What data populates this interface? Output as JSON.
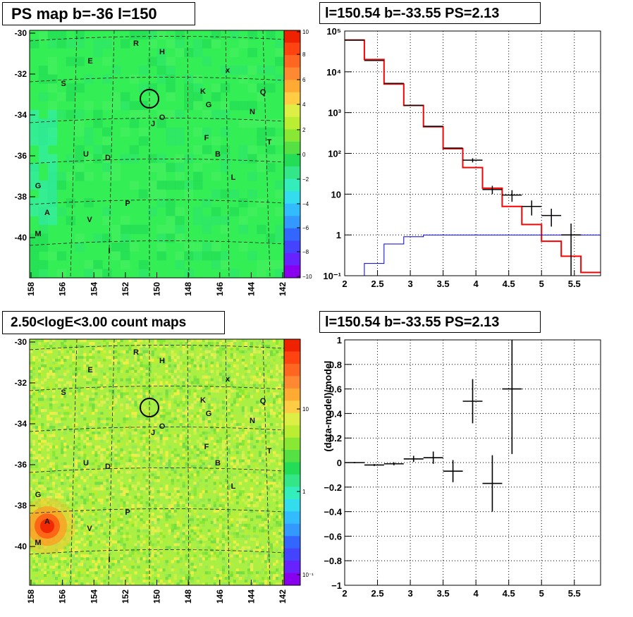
{
  "panels": {
    "ps_map": {
      "title": "PS map b=-36 l=150",
      "colorbar_ticks": [
        "10",
        "8",
        "6",
        "4",
        "2",
        "0",
        "−2",
        "−4",
        "−6",
        "−8",
        "−10"
      ]
    },
    "spectrum": {
      "title": "l=150.54 b=-33.55 PS=2.13"
    },
    "count_map": {
      "title": "2.50<logE<3.00 count maps",
      "colorbar_ticks": [
        "10",
        "1",
        "10⁻¹"
      ]
    },
    "residual": {
      "title": "l=150.54 b=-33.55 PS=2.13"
    }
  },
  "map_axes": {
    "x_ticks": [
      "158",
      "156",
      "154",
      "152",
      "150",
      "148",
      "146",
      "144",
      "142"
    ],
    "y_ticks": [
      "-30",
      "-32",
      "-34",
      "-36",
      "-38",
      "-40"
    ]
  },
  "map_labels": [
    "R",
    "H",
    "E",
    "S",
    "K",
    "Q",
    "G",
    "N",
    "J",
    "O",
    "F",
    "T",
    "U",
    "D",
    "B",
    "L",
    "G",
    "P",
    "A",
    "V",
    "M",
    "I",
    "x"
  ],
  "chart_data": [
    {
      "type": "line",
      "title": "l=150.54 b=-33.55 PS=2.13",
      "xlim": [
        2,
        5.9
      ],
      "ylim": [
        0.1,
        100000
      ],
      "yscale": "log",
      "grid": true,
      "x_ticks": [
        "2",
        "2.5",
        "3",
        "3.5",
        "4",
        "4.5",
        "5",
        "5.5"
      ],
      "y_ticks": [
        "10⁵",
        "10⁴",
        "10³",
        "10²",
        "10",
        "1",
        "10⁻¹"
      ],
      "series": [
        {
          "color": "#ff0000",
          "edges": [
            2.0,
            2.3,
            2.6,
            2.9,
            3.2,
            3.5,
            3.8,
            4.1,
            4.4,
            4.7,
            5.0,
            5.3,
            5.6,
            5.9
          ],
          "values": [
            60000,
            20000,
            5000,
            1500,
            450,
            130,
            45,
            14,
            5,
            1.8,
            0.7,
            0.3,
            0.12
          ]
        },
        {
          "color": "#0000cc",
          "edges": [
            2.0,
            2.3,
            2.6,
            2.9,
            3.2,
            3.5,
            3.8,
            4.1,
            4.4,
            4.7,
            5.0,
            5.3,
            5.6,
            5.9
          ],
          "values": [
            0.1,
            0.2,
            0.6,
            0.9,
            1.0,
            1.0,
            1.0,
            1.0,
            1.0,
            1.0,
            1.0,
            1.0,
            1.0
          ]
        },
        {
          "color": "#000000",
          "type": "errorbar",
          "points": [
            [
              2.15,
              60000,
              0.15,
              0
            ],
            [
              2.45,
              19000,
              0.15,
              0
            ],
            [
              2.75,
              5200,
              0.15,
              0
            ],
            [
              3.05,
              1500,
              0.15,
              0
            ],
            [
              3.35,
              460,
              0.15,
              0
            ],
            [
              3.65,
              135,
              0.15,
              0
            ],
            [
              3.95,
              68,
              0.15,
              8
            ],
            [
              4.25,
              13,
              0.15,
              3
            ],
            [
              4.55,
              9.5,
              0.15,
              3
            ],
            [
              4.85,
              5,
              0.15,
              2
            ],
            [
              5.15,
              3,
              0.15,
              1.4
            ],
            [
              5.45,
              1,
              0.15,
              0.9
            ]
          ]
        }
      ]
    },
    {
      "type": "scatter",
      "title": "l=150.54 b=-33.55 PS=2.13",
      "ylabel": "(data-model)/model",
      "xlim": [
        2,
        5.9
      ],
      "ylim": [
        -1,
        1
      ],
      "grid": true,
      "x_ticks": [
        "2",
        "2.5",
        "3",
        "3.5",
        "4",
        "4.5",
        "5",
        "5.5"
      ],
      "y_ticks": [
        "1",
        "0.8",
        "0.6",
        "0.4",
        "0.2",
        "0",
        "−0.2",
        "−0.4",
        "−0.6",
        "−0.8",
        "−1"
      ],
      "points": [
        {
          "x": 2.15,
          "y": 0.0,
          "xerr": 0.15,
          "yerr": 0.005
        },
        {
          "x": 2.45,
          "y": -0.02,
          "xerr": 0.15,
          "yerr": 0.008
        },
        {
          "x": 2.75,
          "y": -0.01,
          "xerr": 0.15,
          "yerr": 0.012
        },
        {
          "x": 3.05,
          "y": 0.03,
          "xerr": 0.15,
          "yerr": 0.025
        },
        {
          "x": 3.35,
          "y": 0.04,
          "xerr": 0.15,
          "yerr": 0.05
        },
        {
          "x": 3.65,
          "y": -0.07,
          "xerr": 0.15,
          "yerr": 0.09
        },
        {
          "x": 3.95,
          "y": 0.5,
          "xerr": 0.15,
          "yerr": 0.18
        },
        {
          "x": 4.25,
          "y": -0.17,
          "xerr": 0.15,
          "yerr": 0.23
        },
        {
          "x": 4.55,
          "y": 0.6,
          "xerr": 0.15,
          "yerr": 0.53
        }
      ]
    }
  ]
}
